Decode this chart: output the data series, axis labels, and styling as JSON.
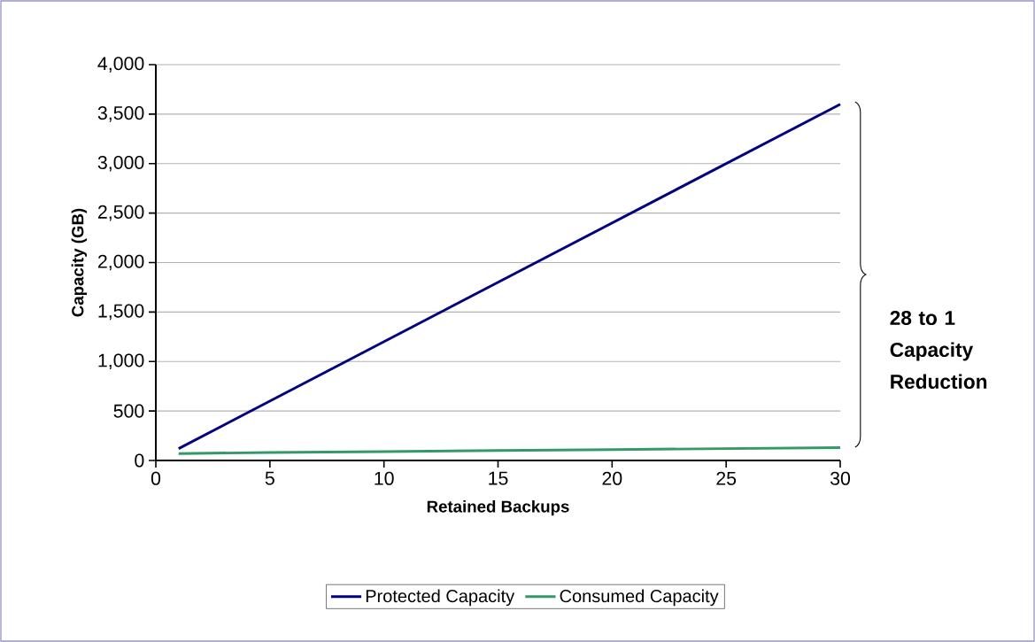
{
  "chart_data": {
    "type": "line",
    "xlabel": "Retained Backups",
    "ylabel": "Capacity (GB)",
    "series": [
      {
        "name": "Protected Capacity",
        "color": "#000080",
        "x": [
          1,
          30
        ],
        "values": [
          120,
          3600
        ]
      },
      {
        "name": "Consumed Capacity",
        "color": "#339966",
        "x": [
          1,
          5,
          10,
          15,
          20,
          25,
          30
        ],
        "values": [
          70,
          80,
          90,
          100,
          110,
          120,
          130
        ]
      }
    ],
    "xlim": [
      0,
      30
    ],
    "xticks": [
      0,
      5,
      10,
      15,
      20,
      25,
      30
    ],
    "ylim": [
      0,
      4000
    ],
    "yticks": [
      {
        "value": 0,
        "label": "0"
      },
      {
        "value": 500,
        "label": "500"
      },
      {
        "value": 1000,
        "label": "1,000"
      },
      {
        "value": 1500,
        "label": "1,500"
      },
      {
        "value": 2000,
        "label": "2,000"
      },
      {
        "value": 2500,
        "label": "2,500"
      },
      {
        "value": 3000,
        "label": "3,000"
      },
      {
        "value": 3500,
        "label": "3,500"
      },
      {
        "value": 4000,
        "label": "4,000"
      }
    ],
    "annotations": [
      "**28 to 1 Capacity Reduction**"
    ],
    "grid": "y",
    "legend": "bottom",
    "marker": "none",
    "line_style": "solid"
  }
}
